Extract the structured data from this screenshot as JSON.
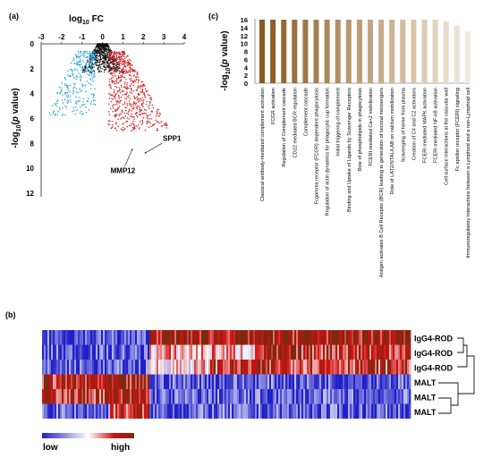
{
  "panel_labels": {
    "a": "(a)",
    "b": "(b)",
    "c": "(c)"
  },
  "colors": {
    "volcano_up": "#d22020",
    "volcano_down": "#22a0d8",
    "volcano_ns": "#111111",
    "bar_gradient_start": "#8a5a1e",
    "bar_gradient_end": "#f4e8dc",
    "heat_low": "#2020c8",
    "heat_mid": "#ffffff",
    "heat_high": "#d21010",
    "heat_dark": "#7a2a10"
  },
  "legend": {
    "low_label": "low",
    "high_label": "high"
  },
  "chart_data": [
    {
      "id": "a",
      "type": "scatter",
      "title": "",
      "xlabel_base": "log",
      "xlabel_sub": "10",
      "xlabel_rest": " FC",
      "ylabel_pre": "-log",
      "ylabel_sub": "10",
      "ylabel_paren": "(",
      "ylabel_p": "p",
      "ylabel_post": " value)",
      "xaxis_position": "top",
      "yaxis_inverted": true,
      "xlim": [
        -3,
        4
      ],
      "ylim": [
        0,
        12
      ],
      "xticks": [
        "-3",
        "-2",
        "-1",
        "0",
        "1",
        "2",
        "3",
        "4"
      ],
      "yticks": [
        "0",
        "2",
        "4",
        "6",
        "8",
        "10",
        "12"
      ],
      "annotations": [
        {
          "label": "SPP1",
          "x": 2.85,
          "y": 8.2
        },
        {
          "label": "MMP12",
          "x": 1.65,
          "y": 9.0
        }
      ],
      "series": [
        {
          "name": "",
          "color_key": "volcano_up",
          "note": "up-regulated, scattered x 0.3–3, y 1–7"
        },
        {
          "name": "",
          "color_key": "volcano_down",
          "note": "down-regulated, scattered x -2.5–-0.3, y 1–6"
        },
        {
          "name": "",
          "color_key": "volcano_ns",
          "note": "not significant, dense near origin"
        }
      ]
    },
    {
      "id": "c",
      "type": "bar",
      "title": "",
      "xlabel": "",
      "ylabel_pre": "-log",
      "ylabel_sub": "10",
      "ylabel_paren": "(",
      "ylabel_p": "p",
      "ylabel_post": " value)",
      "ylim": [
        0,
        16
      ],
      "yticks": [
        "0",
        "2",
        "4",
        "6",
        "8",
        "10",
        "12",
        "14",
        "16"
      ],
      "categories": [
        "Classical antibody-mediated complement activation",
        "FCGR activation",
        "Regulation of Complement cascade",
        "CD22 mediated BCR regulation",
        "Complement cascade",
        "Fcgamma receptor (FCGR) dependent phagocytosis",
        "Regulation of actin dynamics for phagocytic cup formation",
        "Initial triggering of complement",
        "Binding and Uptake of Ligands by Scavenger Receptors",
        "Role of phospholipids in phagocytosis",
        "FCERI mediated Ca+2 mobilization",
        "Antigen activates B Cell Receptor (BCR) leading to generation of second messengers",
        "Role of LAT2/NTAL/LAB on calcium mobilization",
        "Scavenging of heme from plasma",
        "Creation of C4 and C2 activators",
        "FCERI mediated MAPK activation",
        "FCERI mediated NF-kB activation",
        "Cell surface interactions at the vascular wall",
        "Fc epsilon receptor (FCERI) signaling",
        "Immunoregulatory interactions between a Lymphoid and a non-Lymphoid cell"
      ],
      "values": [
        16,
        16,
        16,
        16,
        16,
        16,
        16,
        16,
        16,
        16,
        16,
        16,
        16,
        16,
        16,
        16,
        16,
        15.5,
        14.5,
        13
      ]
    },
    {
      "id": "b",
      "type": "heatmap",
      "title": "",
      "row_labels": [
        "IgG4-ROD",
        "IgG4-ROD",
        "IgG4-ROD",
        "MALT",
        "MALT",
        "MALT"
      ],
      "dendrogram": "rows: three IgG4-ROD samples cluster together, three MALT samples cluster together",
      "note": "left ~30% of columns high in MALT / low in IgG4-ROD; right ~70% high in IgG4-ROD / low in MALT"
    }
  ]
}
